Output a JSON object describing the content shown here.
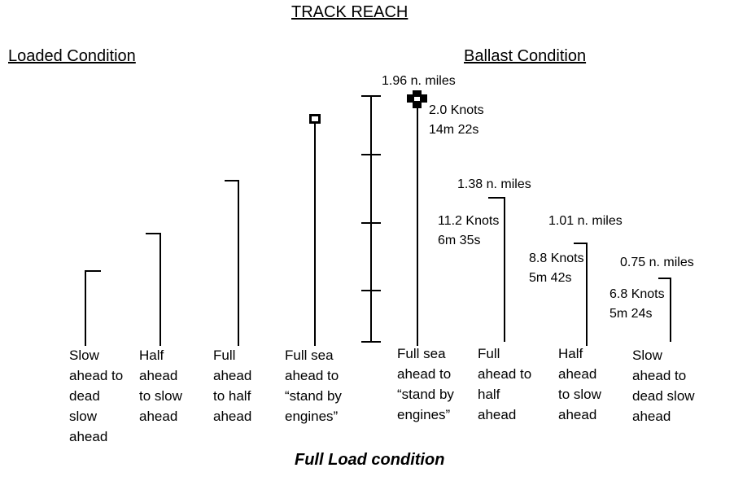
{
  "title": "TRACK REACH",
  "loaded_heading": "Loaded Condition",
  "ballast_heading": "Ballast Condition",
  "footer": "Full Load condition",
  "ballast_annotations": {
    "full_sea": {
      "distance": "1.96 n. miles",
      "speed": "2.0 Knots",
      "time": "14m 22s"
    },
    "full_half": {
      "distance": "1.38 n. miles",
      "speed": "11.2 Knots",
      "time": "6m 35s"
    },
    "half_slow": {
      "distance": "1.01 n. miles",
      "speed": "8.8 Knots",
      "time": "5m 42s"
    },
    "slow_dead": {
      "distance": "0.75 n. miles",
      "speed": "6.8 Knots",
      "time": "5m 24s"
    }
  },
  "loaded_captions": [
    "Slow\nahead to\ndead\nslow\nahead",
    "Half\nahead\nto slow\nahead",
    "Full\nahead\nto half\nahead",
    "Full sea\nahead to\n“stand by\nengines”"
  ],
  "ballast_captions": [
    "Full sea\nahead to\n“stand by\nengines”",
    "Full\nahead to\nhalf\nahead",
    "Half\nahead\nto slow\nahead",
    "Slow\nahead to\ndead slow\nahead"
  ]
}
